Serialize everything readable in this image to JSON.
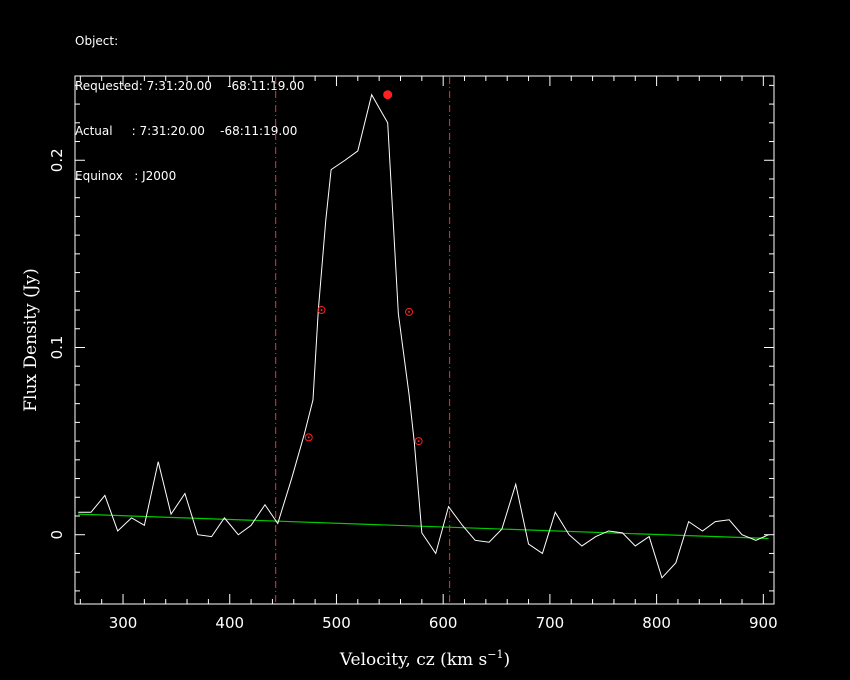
{
  "header": {
    "line1": "Object:",
    "line2": "Requested: 7:31:20.00    -68:11:19.00",
    "line3": "Actual     : 7:31:20.00    -68:11:19.00",
    "line4": "Equinox   : J2000"
  },
  "chart_data": {
    "type": "line",
    "title": "",
    "xlabel": "Velocity, cz (km s",
    "xlabel_sup": "−1",
    "xlabel_close": ")",
    "ylabel": "Flux Density (Jy)",
    "xlim": [
      255,
      910
    ],
    "ylim": [
      -0.037,
      0.245
    ],
    "xticks": [
      300,
      400,
      500,
      600,
      700,
      800,
      900
    ],
    "yticks": [
      0,
      0.1,
      0.2
    ],
    "xtick_labels": [
      "300",
      "400",
      "500",
      "600",
      "700",
      "800",
      "900"
    ],
    "ytick_labels": [
      "0",
      "0.1",
      "0.2"
    ],
    "colors": {
      "spectrum": "#ffffff",
      "baseline": "#00cc00",
      "markers": "#ff2020",
      "window": "#cc2a2a",
      "frame": "#ffffff"
    },
    "spectrum": {
      "x": [
        258,
        270,
        283,
        295,
        308,
        320,
        333,
        345,
        358,
        370,
        383,
        395,
        408,
        420,
        433,
        445,
        458,
        470,
        478,
        483,
        490,
        495,
        508,
        520,
        533,
        548,
        558,
        568,
        573,
        580,
        593,
        605,
        618,
        630,
        643,
        655,
        668,
        680,
        693,
        705,
        718,
        730,
        743,
        755,
        768,
        780,
        793,
        805,
        818,
        830,
        843,
        855,
        868,
        880,
        893,
        905
      ],
      "y": [
        0.012,
        0.012,
        0.021,
        0.002,
        0.009,
        0.005,
        0.039,
        0.011,
        0.022,
        0.0,
        -0.001,
        0.009,
        0.0,
        0.005,
        0.016,
        0.006,
        0.03,
        0.054,
        0.072,
        0.12,
        0.168,
        0.195,
        0.2,
        0.205,
        0.235,
        0.22,
        0.118,
        0.075,
        0.049,
        0.001,
        -0.01,
        0.015,
        0.005,
        -0.003,
        -0.004,
        0.003,
        0.027,
        -0.005,
        -0.01,
        0.012,
        0.0,
        -0.006,
        -0.001,
        0.002,
        0.001,
        -0.006,
        -0.001,
        -0.023,
        -0.015,
        0.007,
        0.002,
        0.007,
        0.008,
        0.0,
        -0.003,
        0.0
      ]
    },
    "baseline": {
      "x": [
        258,
        905
      ],
      "y": [
        0.011,
        -0.002
      ]
    },
    "window_lines_x": [
      443,
      606
    ],
    "markers": [
      {
        "x": 474,
        "y": 0.052,
        "kind": "open"
      },
      {
        "x": 486,
        "y": 0.12,
        "kind": "open"
      },
      {
        "x": 568,
        "y": 0.119,
        "kind": "open"
      },
      {
        "x": 577,
        "y": 0.05,
        "kind": "open"
      },
      {
        "x": 548,
        "y": 0.235,
        "kind": "filled"
      }
    ]
  }
}
